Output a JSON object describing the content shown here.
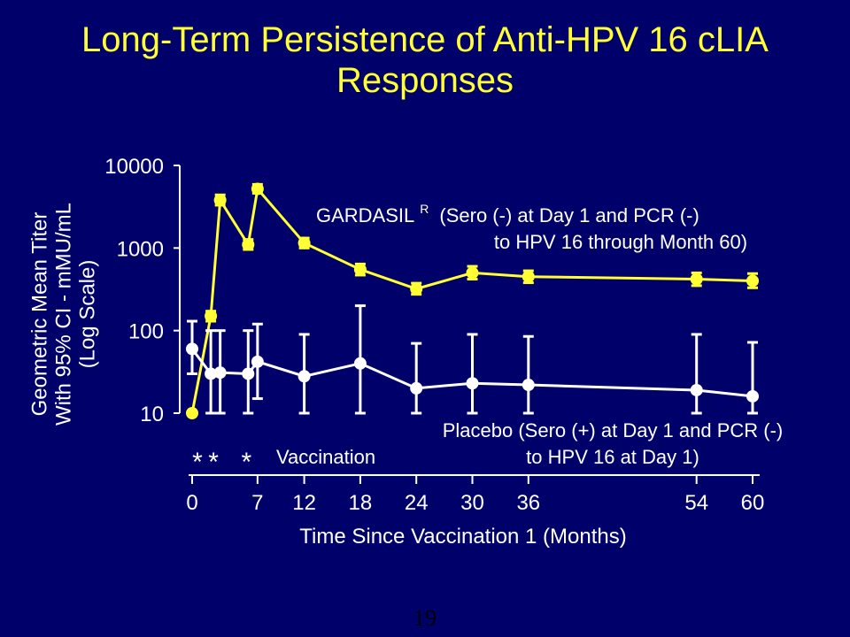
{
  "title_line1": "Long-Term Persistence of Anti-HPV 16 cLIA",
  "title_line2": "Responses",
  "ylabel_line1": "Geometric Mean Titer",
  "ylabel_line2": "With 95% CI - mMU/mL",
  "ylabel_line3": "(Log Scale)",
  "page_number": "19",
  "colors": {
    "background": "#00006a",
    "gardasil": "#ffff33",
    "placebo": "#ffffff",
    "title": "#ffff33",
    "text": "#ffffff"
  },
  "chart_data": {
    "type": "line",
    "xlabel": "Time Since Vaccination 1 (Months)",
    "ylabel": "Geometric Mean Titer With 95% CI - mMU/mL (Log Scale)",
    "yscale": "log",
    "ylim": [
      10,
      10000
    ],
    "y_ticks": [
      10,
      100,
      1000,
      10000
    ],
    "y_tick_labels": [
      "10",
      "100",
      "1000",
      "10000"
    ],
    "x_ticks": [
      0,
      7,
      12,
      18,
      24,
      30,
      36,
      54,
      60
    ],
    "x_tick_labels": [
      "0",
      "7",
      "12",
      "18",
      "24",
      "30",
      "36",
      "54",
      "60"
    ],
    "vaccination_marker": "*",
    "vaccination_months": [
      0,
      2,
      6
    ],
    "vaccination_label": "Vaccination",
    "grid": false,
    "series": [
      {
        "label_line1": "GARDASIL",
        "label_sup": "R",
        "label_line1_rest": "(Sero (-) at Day 1 and PCR (-)",
        "label_line2": "to HPV 16 through Month 60)",
        "color": "#ffff33",
        "points": [
          {
            "x": 0,
            "y": 10,
            "lo": 10,
            "hi": 10
          },
          {
            "x": 2,
            "y": 150,
            "lo": 130,
            "hi": 172
          },
          {
            "x": 3,
            "y": 3800,
            "lo": 3300,
            "hi": 4400
          },
          {
            "x": 6,
            "y": 1100,
            "lo": 960,
            "hi": 1270
          },
          {
            "x": 7,
            "y": 5200,
            "lo": 4600,
            "hi": 5900
          },
          {
            "x": 12,
            "y": 1150,
            "lo": 1000,
            "hi": 1320
          },
          {
            "x": 18,
            "y": 550,
            "lo": 470,
            "hi": 640
          },
          {
            "x": 24,
            "y": 320,
            "lo": 275,
            "hi": 375
          },
          {
            "x": 30,
            "y": 500,
            "lo": 420,
            "hi": 600
          },
          {
            "x": 36,
            "y": 450,
            "lo": 380,
            "hi": 530
          },
          {
            "x": 54,
            "y": 420,
            "lo": 350,
            "hi": 500
          },
          {
            "x": 60,
            "y": 400,
            "lo": 330,
            "hi": 490
          }
        ]
      },
      {
        "label_line1": "Placebo (Sero (+) at Day 1 and PCR (-)",
        "label_line2": "to HPV 16 at Day 1)",
        "color": "#ffffff",
        "points": [
          {
            "x": 0,
            "y": 60,
            "lo": 30,
            "hi": 130
          },
          {
            "x": 2,
            "y": 30,
            "lo": 10,
            "hi": 100
          },
          {
            "x": 3,
            "y": 31,
            "lo": 10,
            "hi": 100
          },
          {
            "x": 6,
            "y": 30,
            "lo": 10,
            "hi": 100
          },
          {
            "x": 7,
            "y": 42,
            "lo": 15,
            "hi": 120
          },
          {
            "x": 12,
            "y": 28,
            "lo": 10,
            "hi": 90
          },
          {
            "x": 18,
            "y": 40,
            "lo": 10,
            "hi": 200
          },
          {
            "x": 24,
            "y": 20,
            "lo": 10,
            "hi": 70
          },
          {
            "x": 30,
            "y": 23,
            "lo": 10,
            "hi": 90
          },
          {
            "x": 36,
            "y": 22,
            "lo": 10,
            "hi": 85
          },
          {
            "x": 54,
            "y": 19,
            "lo": 10,
            "hi": 90
          },
          {
            "x": 60,
            "y": 16,
            "lo": 10,
            "hi": 72
          }
        ]
      }
    ]
  }
}
